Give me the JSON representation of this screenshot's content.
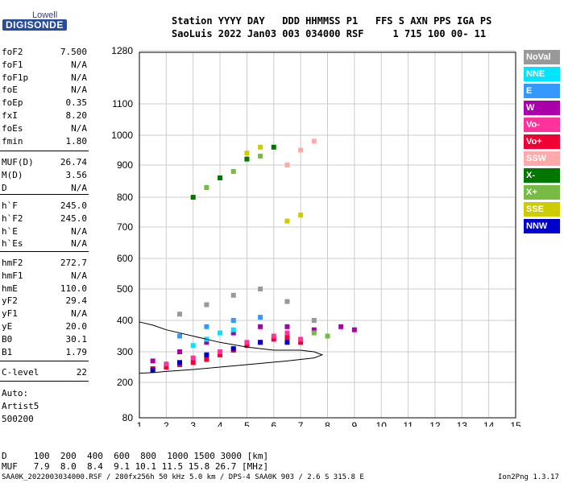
{
  "logo": {
    "top": "Lowell",
    "main": "DIGISONDE"
  },
  "header": {
    "line1": "Station YYYY DAY   DDD HHMMSS P1   FFS S AXN PPS IGA PS",
    "line2": "SaoLuis 2022 Jan03 003 034000 RSF     1 715 100 00- 11"
  },
  "params_group1": [
    {
      "name": "foF2",
      "value": "7.500"
    },
    {
      "name": "foF1",
      "value": "N/A"
    },
    {
      "name": "foF1p",
      "value": "N/A"
    },
    {
      "name": "foE",
      "value": "N/A"
    },
    {
      "name": "foEp",
      "value": "0.35"
    },
    {
      "name": "fxI",
      "value": "8.20"
    },
    {
      "name": "foEs",
      "value": "N/A"
    },
    {
      "name": "fmin",
      "value": "1.80"
    }
  ],
  "params_group2": [
    {
      "name": "MUF(D)",
      "value": "26.74"
    },
    {
      "name": "M(D)",
      "value": "3.56"
    },
    {
      "name": "D",
      "value": "N/A"
    }
  ],
  "params_group3": [
    {
      "name": "h`F",
      "value": "245.0"
    },
    {
      "name": "h`F2",
      "value": "245.0"
    },
    {
      "name": "h`E",
      "value": "N/A"
    },
    {
      "name": "h`Es",
      "value": "N/A"
    }
  ],
  "params_group4": [
    {
      "name": "hmF2",
      "value": "272.7"
    },
    {
      "name": "hmF1",
      "value": "N/A"
    },
    {
      "name": "hmE",
      "value": "110.0"
    },
    {
      "name": "yF2",
      "value": "29.4"
    },
    {
      "name": "yF1",
      "value": "N/A"
    },
    {
      "name": "yE",
      "value": "20.0"
    },
    {
      "name": "B0",
      "value": "30.1"
    },
    {
      "name": "B1",
      "value": "1.79"
    }
  ],
  "params_group5": [
    {
      "name": "C-level",
      "value": "22"
    }
  ],
  "autoscaling": {
    "line1": "Auto:",
    "line2": "Artist5",
    "line3": "500200"
  },
  "legend": [
    {
      "label": "NoVal",
      "color": "#999999"
    },
    {
      "label": "NNE",
      "color": "#00e5ff"
    },
    {
      "label": "E",
      "color": "#3399ff"
    },
    {
      "label": "W",
      "color": "#aa00aa"
    },
    {
      "label": "Vo-",
      "color": "#ff3399"
    },
    {
      "label": "Vo+",
      "color": "#ee0033"
    },
    {
      "label": "SSW",
      "color": "#ffaaaa"
    },
    {
      "label": "X-",
      "color": "#007700"
    },
    {
      "label": "X+",
      "color": "#77bb44"
    },
    {
      "label": "SSE",
      "color": "#cccc00"
    },
    {
      "label": "NNW",
      "color": "#0000cc"
    }
  ],
  "muf_table": {
    "d_line": "D     100  200  400  600  800  1000 1500 3000 [km]",
    "muf_line": "MUF   7.9  8.0  8.4  9.1 10.1 11.5 15.8 26.7 [MHz]"
  },
  "footer": {
    "left": "SAA0K_2022003034000.RSF / 280fx256h 50 kHz 5.0 km / DPS-4 SAA0K 903 / 2.6 S 315.8 E",
    "right": "Ion2Png 1.3.17"
  },
  "chart_data": {
    "type": "scatter",
    "title": "",
    "xlabel": "",
    "ylabel": "",
    "x_ticks": [
      1,
      2,
      3,
      4,
      5,
      6,
      7,
      8,
      9,
      10,
      11,
      12,
      13,
      14,
      15
    ],
    "y_ticks": [
      80,
      200,
      300,
      400,
      500,
      600,
      700,
      800,
      900,
      1000,
      1100,
      1280
    ],
    "xlim": [
      1,
      15
    ],
    "ylim": [
      80,
      1280
    ],
    "y_scale": "nonlinear",
    "grid": true,
    "series": [
      {
        "name": "Vo+",
        "color": "#ee0033",
        "x": [
          1.5,
          2.0,
          2.5,
          3.0,
          3.5,
          4.0,
          4.5,
          5.0,
          5.5,
          6.0,
          6.5,
          7.0
        ],
        "y": [
          245,
          250,
          258,
          265,
          275,
          290,
          305,
          320,
          330,
          340,
          345,
          330
        ]
      },
      {
        "name": "Vo-",
        "color": "#ff3399",
        "x": [
          2.0,
          3.0,
          4.0,
          5.0,
          6.0,
          6.5,
          7.0
        ],
        "y": [
          260,
          280,
          300,
          330,
          350,
          360,
          340
        ]
      },
      {
        "name": "W",
        "color": "#aa00aa",
        "x": [
          1.5,
          2.5,
          3.5,
          4.5,
          5.5,
          6.5,
          7.5,
          8.5,
          9.0
        ],
        "y": [
          270,
          300,
          330,
          360,
          380,
          380,
          370,
          380,
          370
        ]
      },
      {
        "name": "NNW",
        "color": "#0000cc",
        "x": [
          1.5,
          2.5,
          3.5,
          4.5,
          5.5,
          6.5
        ],
        "y": [
          240,
          265,
          290,
          310,
          330,
          330
        ]
      },
      {
        "name": "NNE",
        "color": "#00e5ff",
        "x": [
          3.0,
          3.5,
          4.0,
          4.5
        ],
        "y": [
          320,
          340,
          360,
          370
        ]
      },
      {
        "name": "E",
        "color": "#3399ff",
        "x": [
          2.5,
          3.5,
          4.5,
          5.5
        ],
        "y": [
          350,
          380,
          400,
          410
        ]
      },
      {
        "name": "X-",
        "color": "#007700",
        "x": [
          3.0,
          4.0,
          5.0,
          6.0
        ],
        "y": [
          800,
          860,
          920,
          960
        ]
      },
      {
        "name": "X+",
        "color": "#77bb44",
        "x": [
          3.5,
          4.5,
          5.5,
          7.5,
          8.0
        ],
        "y": [
          830,
          880,
          930,
          360,
          350
        ]
      },
      {
        "name": "SSE",
        "color": "#cccc00",
        "x": [
          5.0,
          5.5,
          6.5,
          7.0
        ],
        "y": [
          940,
          960,
          720,
          740
        ]
      },
      {
        "name": "SSW",
        "color": "#ffaaaa",
        "x": [
          6.5,
          7.0,
          7.5
        ],
        "y": [
          900,
          950,
          980
        ]
      },
      {
        "name": "NoVal",
        "color": "#999999",
        "x": [
          2.5,
          3.5,
          4.5,
          5.5,
          6.5,
          7.5
        ],
        "y": [
          420,
          450,
          480,
          500,
          460,
          400
        ]
      }
    ],
    "trace": {
      "x": [
        1.0,
        1.5,
        2.0,
        3.0,
        4.0,
        5.0,
        6.0,
        6.5,
        7.0,
        7.5,
        7.8,
        7.5,
        7.0,
        6.0,
        5.0,
        4.0,
        3.0,
        2.0,
        1.5,
        1.0
      ],
      "y": [
        230,
        232,
        236,
        242,
        250,
        258,
        266,
        270,
        275,
        280,
        290,
        300,
        305,
        305,
        315,
        330,
        350,
        370,
        385,
        395
      ]
    }
  }
}
